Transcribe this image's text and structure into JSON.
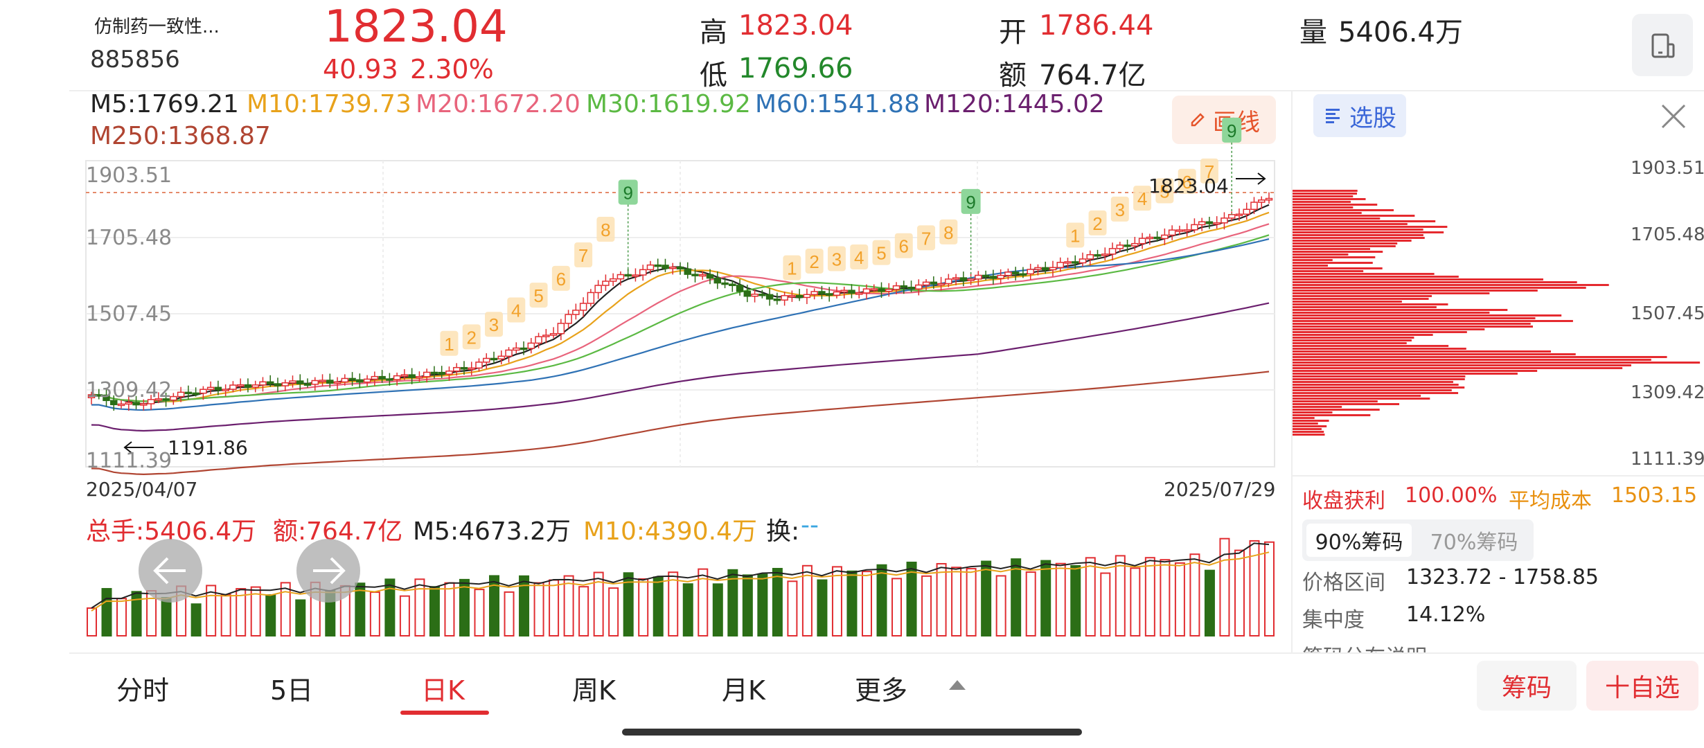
{
  "header": {
    "name": "仿制药一致性...",
    "code": "885856",
    "price": "1823.04",
    "change": "40.93",
    "change_pct": "2.30%",
    "high_label": "高",
    "high": "1823.04",
    "low_label": "低",
    "low": "1769.66",
    "open_label": "开",
    "open": "1786.44",
    "amount_label": "额",
    "amount": "764.7亿",
    "volume_label": "量",
    "volume": "5406.4万"
  },
  "ma_legend": [
    {
      "text": "M5:1769.21",
      "color": "#222222"
    },
    {
      "text": "M10:1739.73",
      "color": "#e8a21b"
    },
    {
      "text": "M20:1672.20",
      "color": "#e8647c"
    },
    {
      "text": "M30:1619.92",
      "color": "#5bb943"
    },
    {
      "text": "M60:1541.88",
      "color": "#2f72b5"
    },
    {
      "text": "M120:1445.02",
      "color": "#6b1f6e"
    },
    {
      "text": "M250:1368.87",
      "color": "#b04532"
    }
  ],
  "draw_button": "画线",
  "price_axis": [
    "1903.51",
    "1705.48",
    "1507.45",
    "1309.42",
    "1111.39"
  ],
  "annotations": {
    "high_mark": "1823.04",
    "low_mark": "1191.86"
  },
  "date_range": {
    "start": "2025/04/07",
    "end": "2025/07/29"
  },
  "td_signals": {
    "group1": [
      "1",
      "2",
      "3",
      "4",
      "5",
      "6",
      "7",
      "8"
    ],
    "group1_top": "9",
    "group2": [
      "1",
      "2",
      "3",
      "4",
      "5",
      "6",
      "7",
      "8"
    ],
    "group2_top": "9",
    "group3": [
      "1",
      "2",
      "3",
      "4",
      "5",
      "6",
      "7"
    ],
    "group3_top": "9"
  },
  "volume_legend": {
    "total": "总手:5406.4万",
    "amount": "额:764.7亿",
    "m5": "M5:4673.2万",
    "m10": "M10:4390.4万",
    "turnover_label": "换:",
    "turnover": "--"
  },
  "chip_panel": {
    "select_label": "选股",
    "axis": [
      "1903.51",
      "1705.48",
      "1507.45",
      "1309.42",
      "1111.39"
    ],
    "profit_label": "收盘获利",
    "profit": "100.00%",
    "avg_cost_label": "平均成本",
    "avg_cost": "1503.15",
    "tabs": [
      "90%筹码",
      "70%筹码"
    ],
    "range_label": "价格区间",
    "range": "1323.72 - 1758.85",
    "concentration_label": "集中度",
    "concentration": "14.12%",
    "note": "筹码分布说明"
  },
  "tabs": [
    "分时",
    "5日",
    "日K",
    "周K",
    "月K",
    "更多"
  ],
  "active_tab": "日K",
  "buttons": {
    "chip": "筹码",
    "watch": "十自选"
  },
  "colors": {
    "up": "#e12d31",
    "down": "#2b6e16",
    "accent_blue": "#3a66d8"
  }
}
